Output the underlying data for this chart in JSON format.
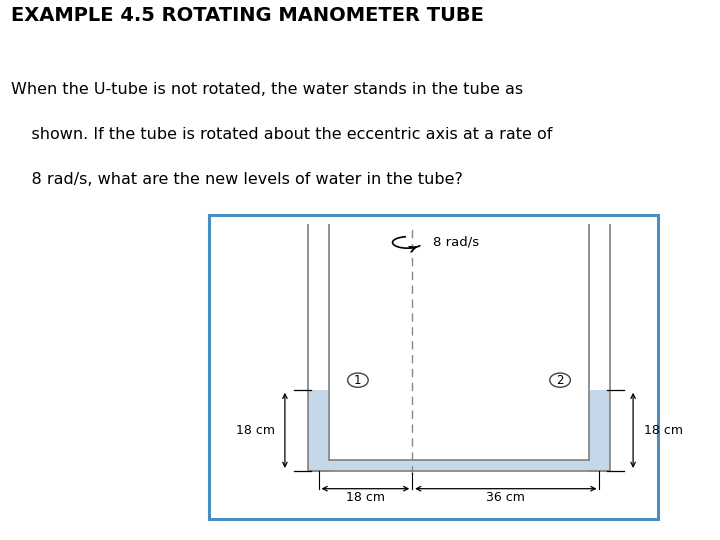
{
  "title": "EXAMPLE 4.5 ROTATING MANOMETER TUBE",
  "title_fontsize": 14,
  "body_text_line1": "When the U-tube is not rotated, the water stands in the tube as",
  "body_text_line2": "    shown. If the tube is rotated about the eccentric axis at a rate of",
  "body_text_line3": "    8 rad/s, what are the new levels of water in the tube?",
  "body_fontsize": 11.5,
  "bg_color": "#ffffff",
  "diagram_border_color": "#4a8fc4",
  "water_color": "#c5d8ea",
  "tube_wall_color": "#888888",
  "tube_fill_color": "#c5d8ea",
  "axis_dashed_color": "#888888",
  "omega_text": "8 rad/s",
  "dim_left_label": "18 cm",
  "dim_right_label": "18 cm",
  "dim_bottom1": "18 cm",
  "dim_bottom2": "36 cm"
}
